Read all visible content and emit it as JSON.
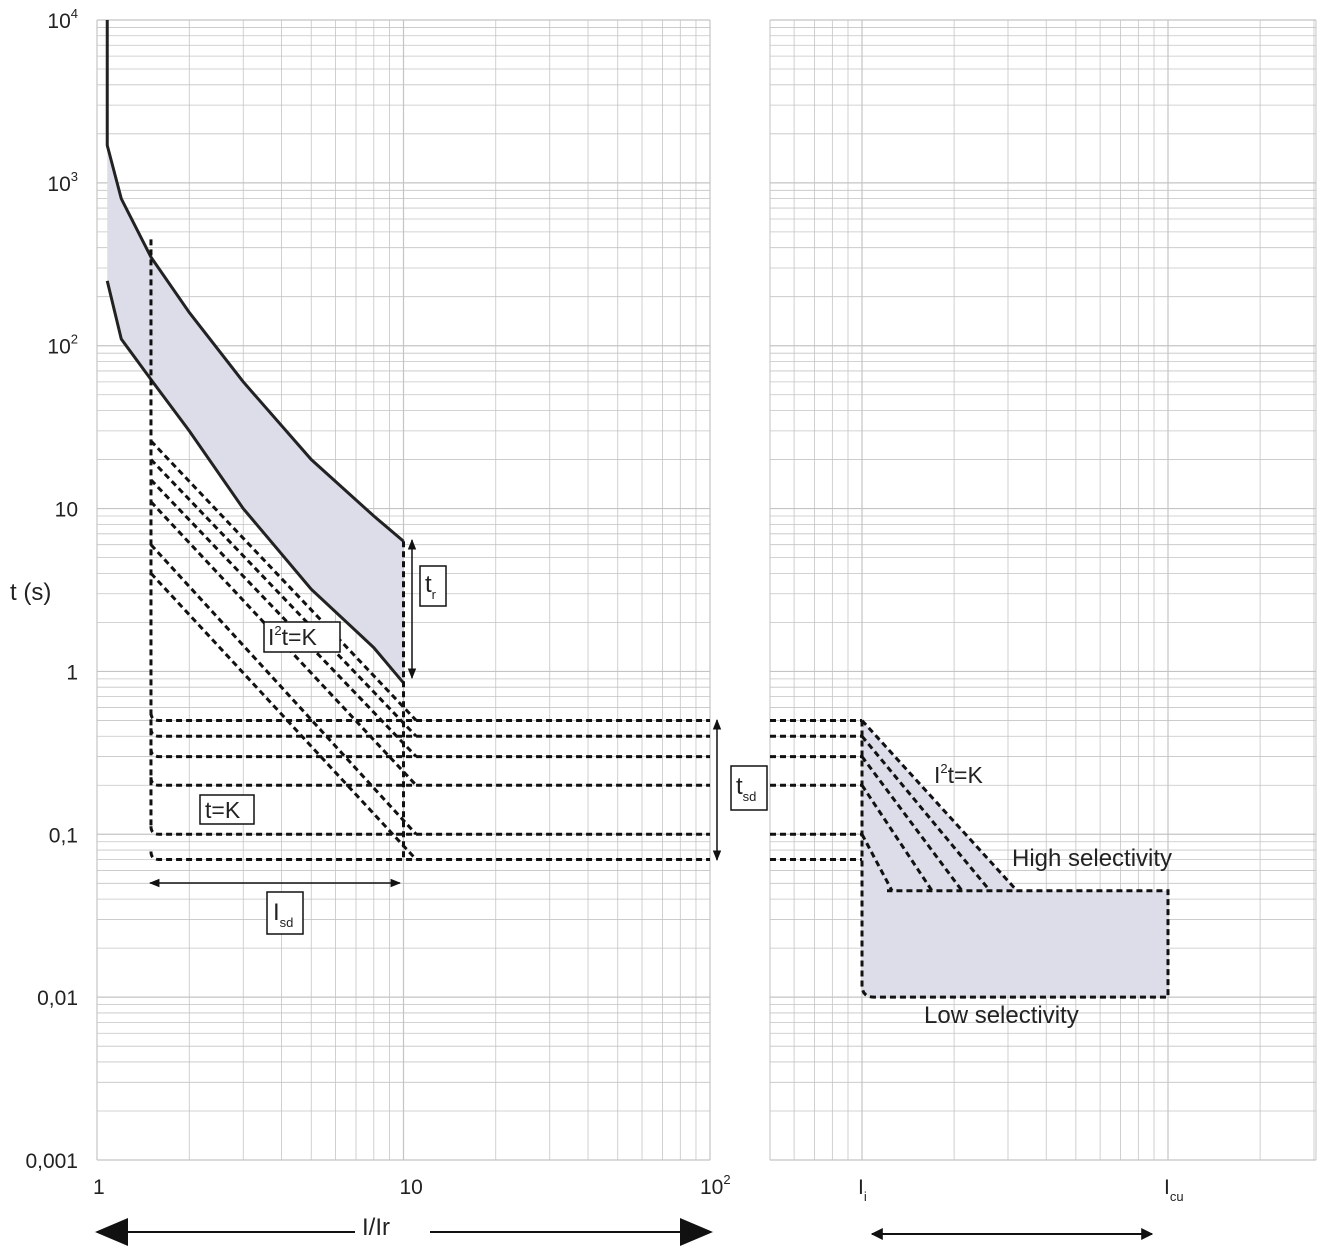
{
  "chart_data": [
    {
      "type": "line",
      "description_scale": "log-log",
      "ylabel": "t (s)",
      "xlabel": "I/Ir",
      "xlim": [
        1,
        100
      ],
      "ylim": [
        0.001,
        10000
      ],
      "x_ticks": [
        {
          "value": 1,
          "label": "1"
        },
        {
          "value": 10,
          "label": "10"
        },
        {
          "value": 100,
          "label": "10",
          "sup": "2"
        }
      ],
      "y_ticks": [
        {
          "value": 10000,
          "label": "10",
          "sup": "4"
        },
        {
          "value": 1000,
          "label": "10",
          "sup": "3"
        },
        {
          "value": 100,
          "label": "10",
          "sup": "2"
        },
        {
          "value": 10,
          "label": "10",
          "sup": ""
        },
        {
          "value": 1,
          "label": "1",
          "sup": ""
        },
        {
          "value": 0.1,
          "label": "0,1",
          "sup": ""
        },
        {
          "value": 0.01,
          "label": "0,01",
          "sup": ""
        },
        {
          "value": 0.001,
          "label": "0,001",
          "sup": ""
        }
      ],
      "long_time_band": {
        "upper": [
          [
            1.08,
            10000
          ],
          [
            1.08,
            1700
          ],
          [
            1.2,
            800
          ],
          [
            1.5,
            350
          ],
          [
            2,
            160
          ],
          [
            3,
            60
          ],
          [
            5,
            20
          ],
          [
            8,
            9
          ],
          [
            10,
            6.3
          ]
        ],
        "lower": [
          [
            1.08,
            250
          ],
          [
            1.2,
            110
          ],
          [
            1.5,
            62
          ],
          [
            2,
            30
          ],
          [
            3,
            10
          ],
          [
            5,
            3.2
          ],
          [
            8,
            1.4
          ],
          [
            10,
            0.85
          ]
        ]
      },
      "dashed_vertical_left": {
        "x": 1.5,
        "y_top": 450,
        "y_bottom": 0.1
      },
      "dashed_vertical_right": {
        "x": 10,
        "y_top": 6.3,
        "y_bottom": 0.07
      },
      "i2t_curves": [
        {
          "x1": 1.5,
          "y1": 26,
          "x2": 11,
          "y2": 0.5
        },
        {
          "x1": 1.5,
          "y1": 20,
          "x2": 11,
          "y2": 0.4
        },
        {
          "x1": 1.5,
          "y1": 15,
          "x2": 11,
          "y2": 0.3
        },
        {
          "x1": 1.5,
          "y1": 11,
          "x2": 11,
          "y2": 0.2
        },
        {
          "x1": 1.5,
          "y1": 6,
          "x2": 11,
          "y2": 0.1
        },
        {
          "x1": 1.5,
          "y1": 4,
          "x2": 11,
          "y2": 0.07
        }
      ],
      "tsd_levels": [
        0.5,
        0.4,
        0.3,
        0.2,
        0.1,
        0.07
      ],
      "annotations": {
        "tr": {
          "main": "t",
          "sub": "r"
        },
        "i2t": {
          "main": "I",
          "sup": "2",
          "rest": "t=K"
        },
        "tk": "t=K",
        "isd": {
          "main": "I",
          "sub": "sd"
        },
        "tsd": {
          "main": "t",
          "sub": "sd"
        }
      }
    },
    {
      "type": "area",
      "x_ticks": [
        {
          "label": "I",
          "sub": "i"
        },
        {
          "label": "I",
          "sub": "cu"
        }
      ],
      "tsd_levels": [
        0.5,
        0.4,
        0.3,
        0.2,
        0.1,
        0.07
      ],
      "i2t_label": {
        "main": "I",
        "sup": "2",
        "rest": "t=K"
      },
      "band": {
        "y_top": 0.045,
        "y_bottom": 0.01,
        "label_high": "High selectivity",
        "label_low": "Low selectivity"
      }
    }
  ]
}
